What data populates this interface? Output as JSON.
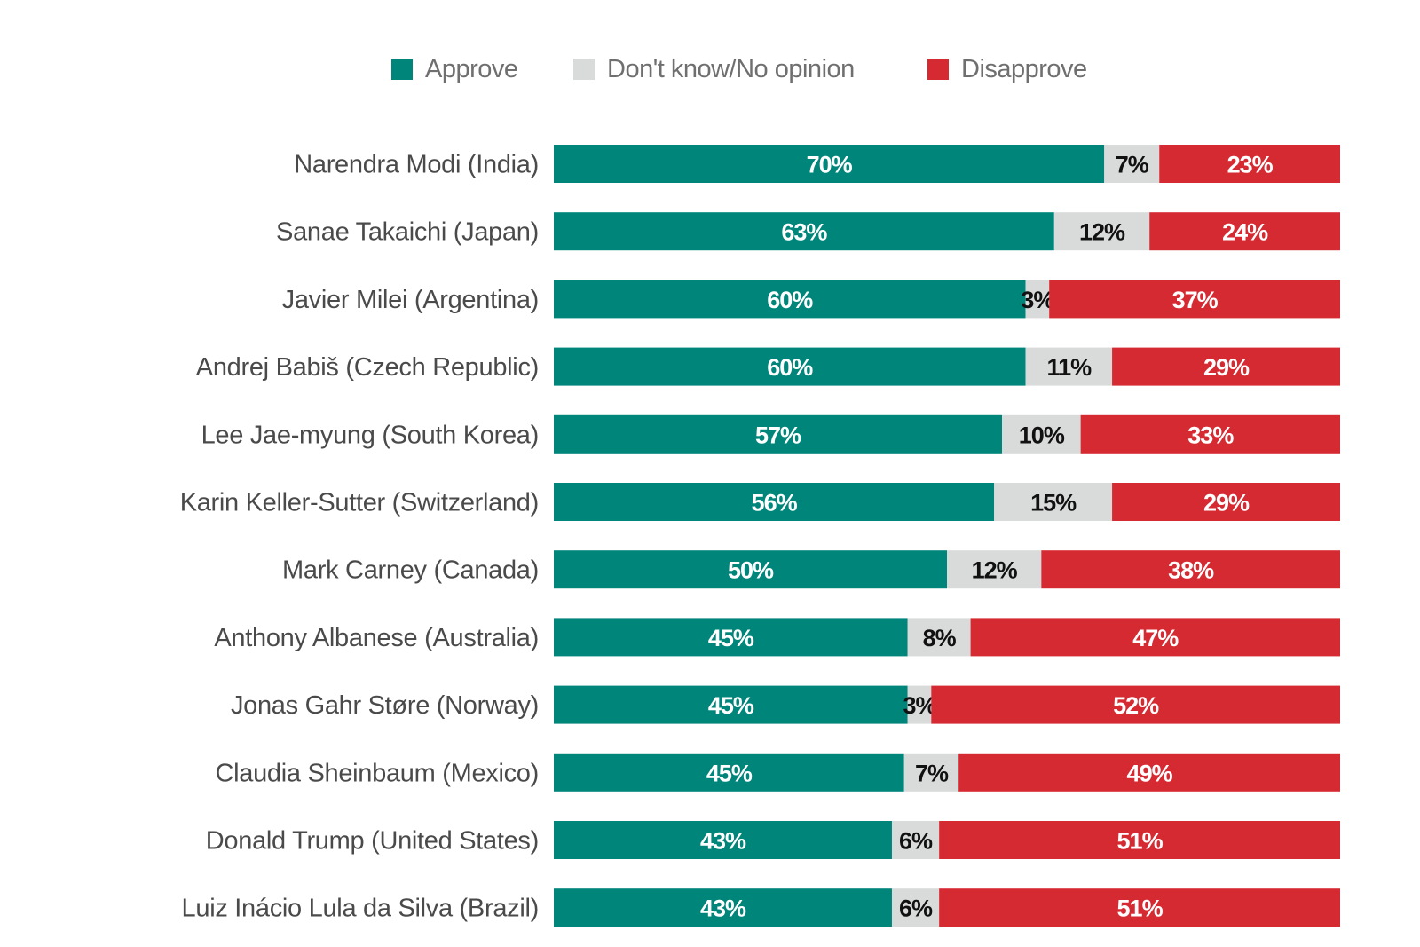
{
  "chart_data": {
    "type": "bar",
    "orientation": "horizontal",
    "stacked": true,
    "title": "",
    "xlabel": "",
    "ylabel": "",
    "xlim": [
      0,
      100
    ],
    "grid": false,
    "legend_position": "top-center",
    "categories": [
      "Narendra Modi (India)",
      "Sanae Takaichi (Japan)",
      "Javier Milei (Argentina)",
      "Andrej Babiš (Czech Republic)",
      "Lee Jae-myung (South Korea)",
      "Karin Keller-Sutter (Switzerland)",
      "Mark Carney (Canada)",
      "Anthony Albanese (Australia)",
      "Jonas Gahr Støre (Norway)",
      "Claudia Sheinbaum (Mexico)",
      "Donald Trump (United States)",
      "Luiz Inácio Lula da Silva (Brazil)"
    ],
    "series": [
      {
        "name": "Approve",
        "color": "#00857a",
        "label_color": "#ffffff",
        "values": [
          70,
          63,
          60,
          60,
          57,
          56,
          50,
          45,
          45,
          45,
          43,
          43
        ]
      },
      {
        "name": "Don't know/No opinion",
        "color": "#d9dbdb",
        "label_color": "#111111",
        "values": [
          7,
          12,
          3,
          11,
          10,
          15,
          12,
          8,
          3,
          7,
          6,
          6
        ]
      },
      {
        "name": "Disapprove",
        "color": "#d62a32",
        "label_color": "#ffffff",
        "values": [
          23,
          24,
          37,
          29,
          33,
          29,
          38,
          47,
          52,
          49,
          51,
          51
        ]
      }
    ],
    "value_suffix": "%"
  }
}
